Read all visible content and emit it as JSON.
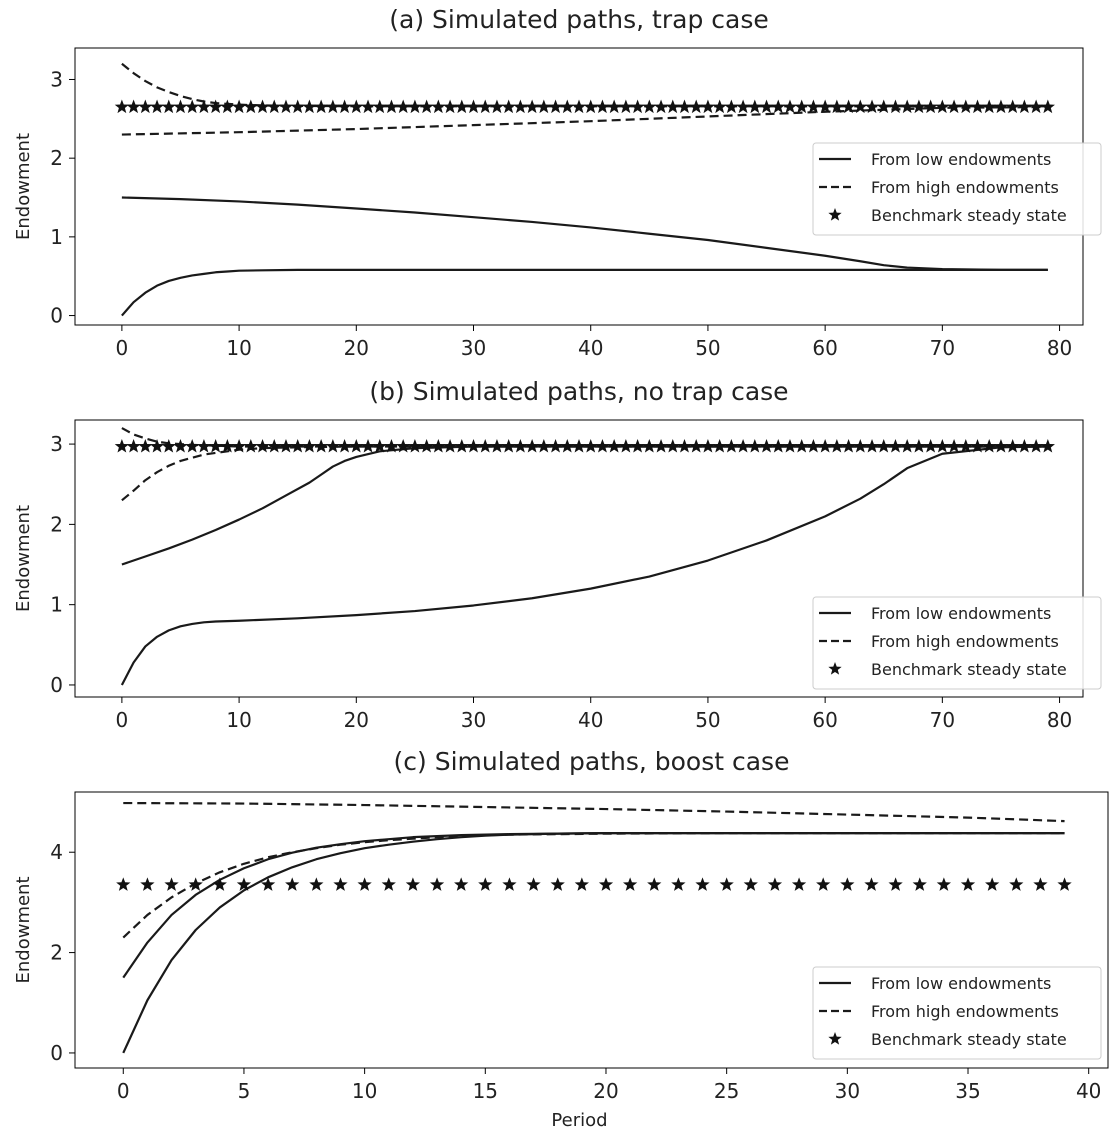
{
  "figure": {
    "background": "#ffffff",
    "line_color": "#1a1a1a"
  },
  "chart_data": [
    {
      "type": "line",
      "title": "(a) Simulated paths, trap case",
      "xlabel": "",
      "ylabel": "Endowment",
      "xlim": [
        -4,
        82
      ],
      "ylim": [
        -0.12,
        3.4
      ],
      "xticks": [
        0,
        10,
        20,
        30,
        40,
        50,
        60,
        70,
        80
      ],
      "yticks": [
        0,
        1,
        2,
        3
      ],
      "grid": false,
      "legend": {
        "position": "right",
        "entries": [
          "From low endowments",
          "From high endowments",
          "Benchmark steady state"
        ]
      },
      "series": [
        {
          "name": "From low endowments",
          "style": "solid",
          "x": [
            0,
            1,
            2,
            3,
            4,
            5,
            6,
            7,
            8,
            9,
            10,
            12,
            15,
            20,
            30,
            40,
            50,
            60,
            70,
            79
          ],
          "y": [
            0,
            0.17,
            0.29,
            0.38,
            0.44,
            0.48,
            0.51,
            0.53,
            0.55,
            0.56,
            0.57,
            0.575,
            0.58,
            0.58,
            0.58,
            0.58,
            0.58,
            0.58,
            0.58,
            0.58
          ]
        },
        {
          "name": "From low endowments",
          "style": "solid",
          "x": [
            0,
            5,
            10,
            15,
            20,
            25,
            30,
            35,
            40,
            45,
            50,
            55,
            60,
            63,
            65,
            67,
            70,
            75,
            79
          ],
          "y": [
            1.5,
            1.48,
            1.45,
            1.41,
            1.36,
            1.31,
            1.25,
            1.19,
            1.12,
            1.04,
            0.96,
            0.86,
            0.76,
            0.69,
            0.64,
            0.61,
            0.59,
            0.58,
            0.58
          ]
        },
        {
          "name": "From high endowments",
          "style": "dashed",
          "x": [
            0,
            1,
            2,
            3,
            4,
            5,
            6,
            7,
            8,
            9,
            10,
            12,
            15,
            20,
            30,
            40,
            50,
            60,
            70,
            79
          ],
          "y": [
            3.2,
            3.08,
            2.98,
            2.9,
            2.84,
            2.79,
            2.75,
            2.72,
            2.7,
            2.69,
            2.68,
            2.67,
            2.665,
            2.66,
            2.66,
            2.66,
            2.66,
            2.66,
            2.66,
            2.66
          ]
        },
        {
          "name": "From high endowments",
          "style": "dashed",
          "x": [
            0,
            10,
            20,
            30,
            40,
            50,
            60,
            70,
            79
          ],
          "y": [
            2.3,
            2.33,
            2.37,
            2.42,
            2.47,
            2.53,
            2.59,
            2.64,
            2.65
          ]
        },
        {
          "name": "Benchmark steady state",
          "style": "star",
          "x_start": 0,
          "x_end": 79,
          "x_step": 1,
          "y": 2.65
        }
      ]
    },
    {
      "type": "line",
      "title": "(b) Simulated paths, no trap case",
      "xlabel": "",
      "ylabel": "Endowment",
      "xlim": [
        -4,
        82
      ],
      "ylim": [
        -0.15,
        3.3
      ],
      "xticks": [
        0,
        10,
        20,
        30,
        40,
        50,
        60,
        70,
        80
      ],
      "yticks": [
        0,
        1,
        2,
        3
      ],
      "grid": false,
      "legend": {
        "position": "lower right",
        "entries": [
          "From low endowments",
          "From high endowments",
          "Benchmark steady state"
        ]
      },
      "series": [
        {
          "name": "From low endowments",
          "style": "solid",
          "x": [
            0,
            1,
            2,
            3,
            4,
            5,
            6,
            7,
            8,
            10,
            15,
            20,
            25,
            30,
            35,
            40,
            45,
            50,
            55,
            60,
            63,
            65,
            67,
            70,
            75,
            79
          ],
          "y": [
            0,
            0.28,
            0.48,
            0.6,
            0.68,
            0.73,
            0.76,
            0.78,
            0.79,
            0.8,
            0.83,
            0.87,
            0.92,
            0.99,
            1.08,
            1.2,
            1.35,
            1.55,
            1.8,
            2.1,
            2.32,
            2.5,
            2.7,
            2.88,
            2.96,
            2.97
          ]
        },
        {
          "name": "From low endowments",
          "style": "solid",
          "x": [
            0,
            2,
            4,
            6,
            8,
            10,
            12,
            14,
            16,
            17,
            18,
            19,
            20,
            22,
            25,
            30,
            40,
            60,
            79
          ],
          "y": [
            1.5,
            1.6,
            1.7,
            1.81,
            1.93,
            2.06,
            2.2,
            2.36,
            2.52,
            2.62,
            2.72,
            2.79,
            2.84,
            2.91,
            2.95,
            2.97,
            2.97,
            2.97,
            2.97
          ]
        },
        {
          "name": "From high endowments",
          "style": "dashed",
          "x": [
            0,
            1,
            2,
            3,
            4,
            5,
            6,
            7,
            8,
            9,
            10,
            12,
            15,
            20,
            30,
            50,
            79
          ],
          "y": [
            3.2,
            3.12,
            3.07,
            3.03,
            3.01,
            3.0,
            2.99,
            2.985,
            2.98,
            2.975,
            2.97,
            2.97,
            2.97,
            2.97,
            2.97,
            2.97,
            2.97
          ]
        },
        {
          "name": "From high endowments",
          "style": "dashed",
          "x": [
            0,
            1,
            2,
            3,
            4,
            5,
            6,
            7,
            8,
            10,
            12,
            15,
            20,
            30,
            50,
            79
          ],
          "y": [
            2.3,
            2.42,
            2.55,
            2.65,
            2.73,
            2.79,
            2.83,
            2.87,
            2.89,
            2.93,
            2.95,
            2.96,
            2.97,
            2.97,
            2.97,
            2.97
          ]
        },
        {
          "name": "Benchmark steady state",
          "style": "star",
          "x_start": 0,
          "x_end": 79,
          "x_step": 1,
          "y": 2.97
        }
      ]
    },
    {
      "type": "line",
      "title": "(c) Simulated paths, boost case",
      "xlabel": "Period",
      "ylabel": "Endowment",
      "xlim": [
        -2,
        40.8
      ],
      "ylim": [
        -0.3,
        5.2
      ],
      "xticks": [
        0,
        5,
        10,
        15,
        20,
        25,
        30,
        35,
        40
      ],
      "yticks": [
        0,
        2,
        4
      ],
      "grid": false,
      "legend": {
        "position": "lower right",
        "entries": [
          "From low endowments",
          "From high endowments",
          "Benchmark steady state"
        ]
      },
      "series": [
        {
          "name": "From low endowments",
          "style": "solid",
          "x": [
            0,
            1,
            2,
            3,
            4,
            5,
            6,
            7,
            8,
            9,
            10,
            11,
            12,
            13,
            14,
            15,
            16,
            18,
            20,
            25,
            30,
            35,
            39
          ],
          "y": [
            0,
            1.05,
            1.85,
            2.45,
            2.9,
            3.24,
            3.5,
            3.7,
            3.86,
            3.98,
            4.08,
            4.15,
            4.21,
            4.26,
            4.3,
            4.33,
            4.35,
            4.37,
            4.38,
            4.38,
            4.38,
            4.38,
            4.38
          ]
        },
        {
          "name": "From low endowments",
          "style": "solid",
          "x": [
            0,
            1,
            2,
            3,
            4,
            5,
            6,
            7,
            8,
            9,
            10,
            11,
            12,
            13,
            14,
            15,
            16,
            18,
            20,
            25,
            30,
            35,
            39
          ],
          "y": [
            1.5,
            2.2,
            2.75,
            3.15,
            3.45,
            3.68,
            3.86,
            3.99,
            4.09,
            4.16,
            4.22,
            4.26,
            4.3,
            4.32,
            4.34,
            4.35,
            4.36,
            4.37,
            4.38,
            4.38,
            4.38,
            4.38,
            4.38
          ]
        },
        {
          "name": "From high endowments",
          "style": "dashed",
          "x": [
            0,
            1,
            2,
            3,
            4,
            5,
            6,
            7,
            8,
            9,
            10,
            11,
            12,
            13,
            14,
            15,
            16,
            18,
            20,
            25,
            30,
            35,
            39
          ],
          "y": [
            2.3,
            2.75,
            3.1,
            3.38,
            3.6,
            3.77,
            3.9,
            4.0,
            4.08,
            4.15,
            4.2,
            4.24,
            4.27,
            4.3,
            4.32,
            4.34,
            4.35,
            4.36,
            4.37,
            4.38,
            4.38,
            4.38,
            4.38
          ]
        },
        {
          "name": "From high endowments",
          "style": "dashed",
          "x": [
            0,
            5,
            10,
            15,
            20,
            25,
            30,
            35,
            39
          ],
          "y": [
            4.98,
            4.97,
            4.94,
            4.9,
            4.86,
            4.81,
            4.75,
            4.69,
            4.62
          ]
        },
        {
          "name": "Benchmark steady state",
          "style": "star",
          "x_start": 0,
          "x_end": 39,
          "x_step": 1,
          "y": 3.35
        }
      ]
    }
  ]
}
